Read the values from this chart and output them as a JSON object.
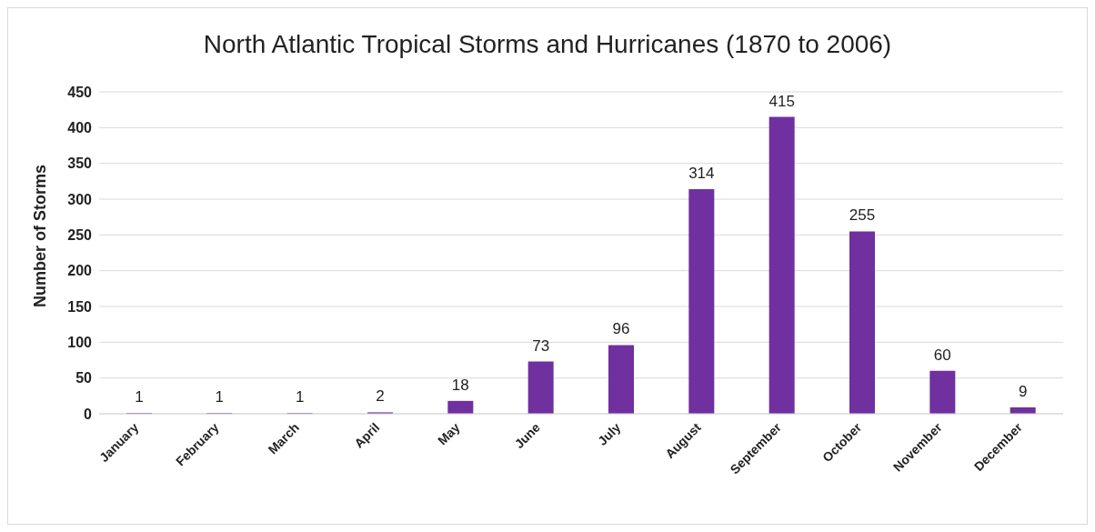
{
  "chart_data": {
    "type": "bar",
    "title": "North Atlantic Tropical Storms and Hurricanes (1870 to 2006)",
    "ylabel": "Number of Storms",
    "categories": [
      "January",
      "February",
      "March",
      "April",
      "May",
      "June",
      "July",
      "August",
      "September",
      "October",
      "November",
      "December"
    ],
    "values": [
      1,
      1,
      1,
      2,
      18,
      73,
      96,
      314,
      415,
      255,
      60,
      9
    ],
    "color": "#7030a0",
    "ylim": [
      0,
      450
    ],
    "yticks": [
      0,
      50,
      100,
      150,
      200,
      250,
      300,
      350,
      400,
      450
    ],
    "grid": "y",
    "data_labels": true
  }
}
